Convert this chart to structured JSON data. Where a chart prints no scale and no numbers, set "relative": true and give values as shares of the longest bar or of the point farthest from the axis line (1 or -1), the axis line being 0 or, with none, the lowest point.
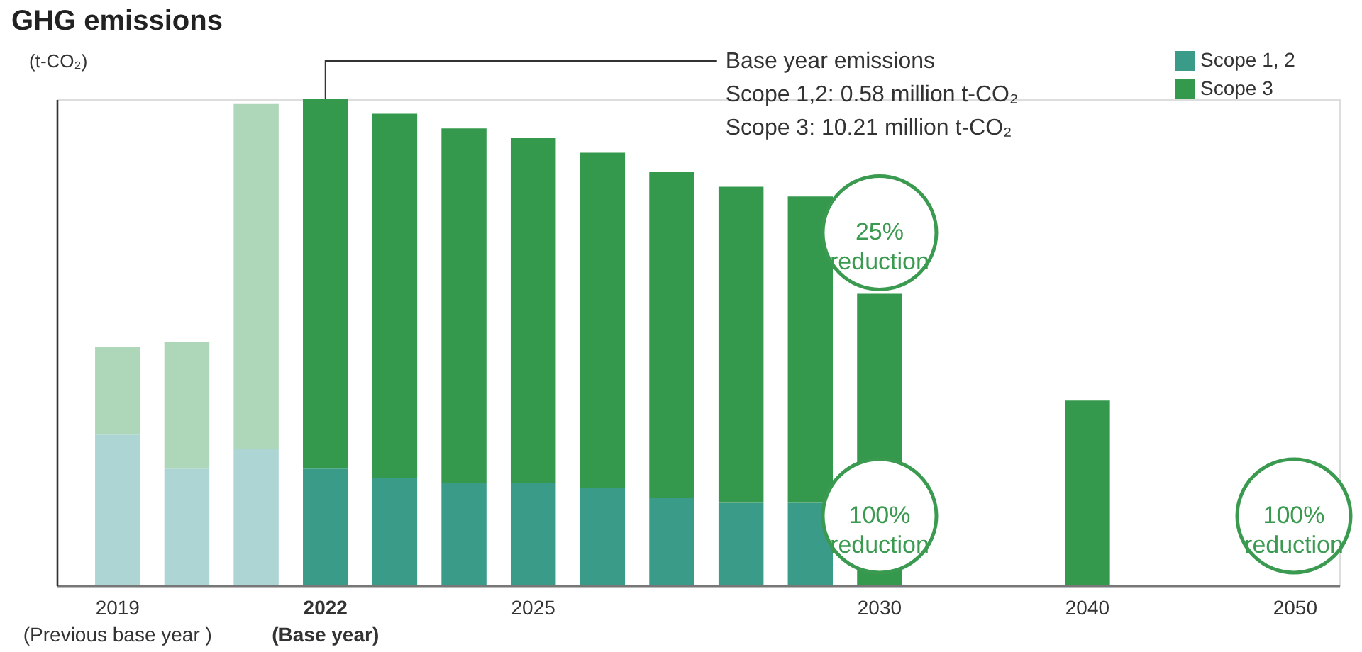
{
  "chart_data": {
    "type": "bar",
    "title": "GHG emissions",
    "ylabel": "(t-CO₂)",
    "stacked": true,
    "relative": true,
    "legend": "top right",
    "categories": [
      "2019\n(Previous base year )",
      null,
      null,
      "2022\n(Base year)",
      null,
      null,
      "2025",
      null,
      null,
      null,
      null,
      "2030",
      null,
      null,
      "2040",
      null,
      null,
      "2050"
    ],
    "series": [
      {
        "name": "Scope 1, 2",
        "color": "#3a9c88",
        "colors": [
          "#acd5d3",
          "#acd5d3",
          "#acd5d3",
          "#3a9c88",
          "#3a9c88",
          "#3a9c88",
          "#3a9c88",
          "#3a9c88",
          "#3a9c88",
          "#3a9c88",
          "#3a9c88",
          "#3a9c88",
          "#3a9c88",
          "#3a9c88",
          "#3a9c88",
          "#3a9c88",
          "#3a9c88",
          "#3a9c88"
        ],
        "values": [
          0.31,
          0.24,
          0.28,
          0.24,
          0.22,
          0.21,
          0.21,
          0.2,
          0.18,
          0.17,
          0.17,
          null,
          null,
          null,
          null,
          null,
          null,
          null
        ]
      },
      {
        "name": "Scope 3",
        "color": "#35994d",
        "colors": [
          "#aed7b9",
          "#aed7b9",
          "#aed7b9",
          "#35994d",
          "#35994d",
          "#35994d",
          "#35994d",
          "#35994d",
          "#35994d",
          "#35994d",
          "#35994d",
          "#35994d",
          "#35994d",
          "#35994d",
          "#35994d",
          "#35994d",
          "#35994d",
          "#35994d"
        ],
        "values": [
          0.18,
          0.26,
          0.71,
          0.76,
          0.75,
          0.73,
          0.71,
          0.69,
          0.67,
          0.65,
          0.63,
          0.6,
          null,
          null,
          0.38,
          null,
          null,
          null
        ]
      }
    ],
    "annotations": [
      {
        "text": "Base year emissions\nScope 1,2: 0.58 million t-CO₂\nScope 3: 10.21 million t-CO₂",
        "x": "2022\n(Base year)",
        "y": 1.0
      },
      {
        "text": "25%\nreduction",
        "x": "2030",
        "y": 0.6
      },
      "100%\nreduction",
      "100%\nreduction"
    ]
  }
}
